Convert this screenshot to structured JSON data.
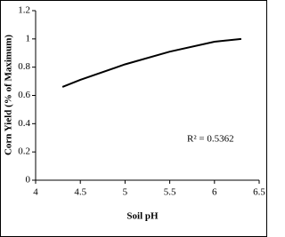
{
  "chart_data": {
    "type": "line",
    "x_label": "Soil pH",
    "y_label": "Corn Yield (% of Maximum)",
    "annotation": "R² = 0.5362",
    "x": [
      4.3,
      4.5,
      5,
      5.5,
      6,
      6.3
    ],
    "values": [
      0.66,
      0.71,
      0.82,
      0.91,
      0.98,
      1.0
    ],
    "color": "#000000",
    "xlim": [
      4,
      6.5
    ],
    "xticks": [
      4,
      4.5,
      5,
      5.5,
      6,
      6.5
    ],
    "ylim": [
      0,
      1.2
    ],
    "yticks": [
      0,
      0.2,
      0.4,
      0.6,
      0.8,
      1,
      1.2
    ],
    "grid": false
  }
}
